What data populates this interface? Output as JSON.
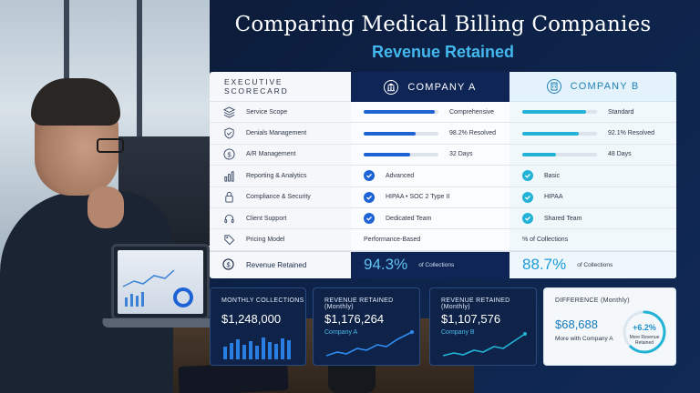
{
  "header": {
    "title": "Comparing Medical Billing Companies",
    "subtitle": "Revenue Retained"
  },
  "scorecard": {
    "label_header": "EXECUTIVE SCORECARD",
    "company_a": "COMPANY A",
    "company_b": "COMPANY B",
    "rows": [
      {
        "label": "Service Scope",
        "icon": "layers-icon",
        "a": "Comprehensive",
        "b": "Standard",
        "kind": "bar",
        "a_fill": 0.95,
        "b_fill": 0.85
      },
      {
        "label": "Denials Management",
        "icon": "shield-check-icon",
        "a": "98.2% Resolved",
        "b": "92.1% Resolved",
        "kind": "bar",
        "a_fill": 0.7,
        "b_fill": 0.75
      },
      {
        "label": "A/R Management",
        "icon": "dollar-circle-icon",
        "a": "32 Days",
        "b": "48  Days",
        "kind": "bar",
        "a_fill": 0.62,
        "b_fill": 0.45
      },
      {
        "label": "Reporting & Analytics",
        "icon": "bar-chart-icon",
        "a": "Advanced",
        "b": "Basic",
        "kind": "check"
      },
      {
        "label": "Compliance & Security",
        "icon": "lock-icon",
        "a": "HIPAA • SOC 2 Type II",
        "b": "HIPAA",
        "kind": "check"
      },
      {
        "label": "Client Support",
        "icon": "headset-icon",
        "a": "Dedicated Team",
        "b": "Shared Team",
        "kind": "check"
      },
      {
        "label": "Pricing Model",
        "icon": "tag-icon",
        "a": "Performance-Based",
        "b": "% of Collections",
        "kind": "text"
      }
    ],
    "retained": {
      "label": "Revenue Retained",
      "a_value": "94.3%",
      "a_note": "of Collections",
      "b_value": "88.7%",
      "b_note": "of Collections"
    }
  },
  "cards": {
    "monthly": {
      "label": "MONTHLY COLLECTIONS",
      "value": "$1,248,000"
    },
    "retained_a": {
      "label": "REVENUE RETAINED (Monthly)",
      "value": "$1,176,264",
      "sub": "Company A"
    },
    "retained_b": {
      "label": "REVENUE RETAINED (Monthly)",
      "value": "$1,107,576",
      "sub": "Company B"
    },
    "difference": {
      "label": "DIFFERENCE (Monthly)",
      "value": "$68,688",
      "sub": "More with Company A",
      "ring_value": "+6.2%",
      "ring_label": "More Revenue Retained",
      "ring_fill": 0.62
    }
  },
  "colors": {
    "navy": "#0f2556",
    "accent_a": "#1e63d6",
    "accent_b": "#22b3d6",
    "highlight": "#42b8ee"
  }
}
